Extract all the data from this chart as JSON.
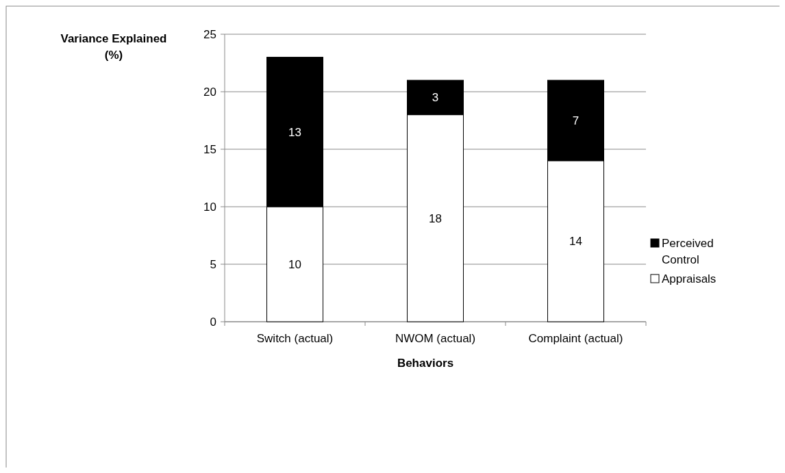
{
  "chart_data": {
    "type": "bar",
    "stacked": true,
    "xlabel": "Behaviors",
    "ylabel": "Variance Explained (%)",
    "categories": [
      "Switch (actual)",
      "NWOM (actual)",
      "Complaint (actual)"
    ],
    "series": [
      {
        "name": "Appraisals",
        "color": "#ffffff",
        "values": [
          10,
          18,
          14
        ]
      },
      {
        "name": "Perceived Control",
        "color": "#000000",
        "values": [
          13,
          3,
          7
        ]
      }
    ],
    "ylim": [
      0,
      25
    ],
    "yticks": [
      0,
      5,
      10,
      15,
      20,
      25
    ],
    "grid": "y",
    "legend": "right",
    "data_labels": true
  }
}
